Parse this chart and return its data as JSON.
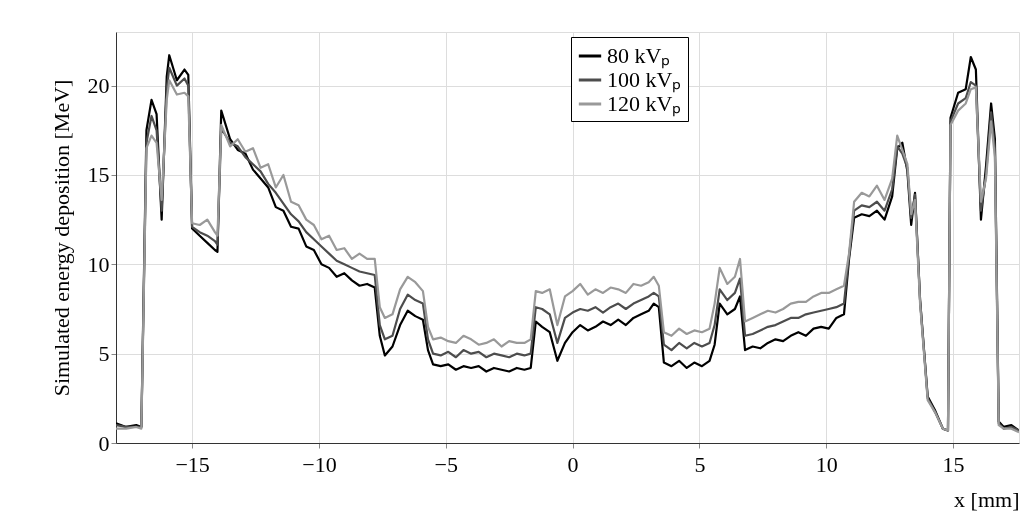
{
  "chart_data": {
    "type": "line",
    "xlabel": "x [mm]",
    "ylabel": "Simulated energy deposition [MeV]",
    "x": [
      -18,
      -17.6,
      -17.2,
      -17.0,
      -16.8,
      -16.6,
      -16.4,
      -16.2,
      -16.0,
      -15.9,
      -15.6,
      -15.3,
      -15.15,
      -15.0,
      -14.7,
      -14.4,
      -14.1,
      -14.0,
      -13.85,
      -13.5,
      -13.2,
      -12.9,
      -12.6,
      -12.3,
      -12.0,
      -11.7,
      -11.4,
      -11.1,
      -10.8,
      -10.5,
      -10.2,
      -9.9,
      -9.6,
      -9.3,
      -9.0,
      -8.7,
      -8.4,
      -8.1,
      -7.8,
      -7.6,
      -7.4,
      -7.1,
      -6.8,
      -6.5,
      -6.2,
      -5.9,
      -5.7,
      -5.5,
      -5.2,
      -4.9,
      -4.6,
      -4.3,
      -4.0,
      -3.7,
      -3.4,
      -3.1,
      -2.8,
      -2.5,
      -2.2,
      -1.9,
      -1.65,
      -1.45,
      -1.2,
      -0.9,
      -0.6,
      -0.3,
      0,
      0.3,
      0.6,
      0.9,
      1.2,
      1.5,
      1.8,
      2.1,
      2.4,
      2.7,
      3.0,
      3.2,
      3.4,
      3.6,
      3.9,
      4.2,
      4.5,
      4.8,
      5.1,
      5.4,
      5.6,
      5.8,
      6.1,
      6.4,
      6.6,
      6.8,
      7.1,
      7.4,
      7.7,
      8.0,
      8.3,
      8.6,
      8.9,
      9.2,
      9.5,
      9.8,
      10.1,
      10.4,
      10.7,
      10.9,
      11.1,
      11.4,
      11.7,
      12.0,
      12.3,
      12.6,
      12.8,
      13.0,
      13.2,
      13.35,
      13.5,
      13.7,
      14.0,
      14.3,
      14.6,
      14.8,
      14.9,
      15.2,
      15.5,
      15.7,
      15.9,
      16.1,
      16.3,
      16.5,
      16.65,
      16.8,
      17.0,
      17.3,
      17.6
    ],
    "series": [
      {
        "name": "80 kVₚ",
        "color": "#000000",
        "values": [
          1.1,
          0.9,
          1.0,
          0.9,
          17.5,
          19.2,
          18.4,
          12.5,
          20.5,
          21.7,
          20.3,
          20.9,
          20.6,
          12.0,
          11.6,
          11.2,
          10.8,
          10.7,
          18.6,
          17.0,
          16.4,
          16.2,
          15.3,
          14.8,
          14.3,
          13.2,
          13.0,
          12.1,
          12.0,
          11.0,
          10.8,
          10.0,
          9.8,
          9.3,
          9.5,
          9.1,
          8.8,
          8.9,
          8.7,
          6.0,
          4.9,
          5.4,
          6.6,
          7.4,
          7.1,
          6.9,
          5.2,
          4.4,
          4.3,
          4.4,
          4.1,
          4.3,
          4.2,
          4.3,
          4.0,
          4.2,
          4.1,
          4.0,
          4.2,
          4.1,
          4.2,
          6.8,
          6.5,
          6.2,
          4.6,
          5.6,
          6.2,
          6.6,
          6.3,
          6.5,
          6.8,
          6.6,
          6.9,
          6.6,
          7.0,
          7.2,
          7.4,
          7.8,
          7.6,
          4.5,
          4.3,
          4.6,
          4.2,
          4.5,
          4.3,
          4.6,
          5.5,
          7.8,
          7.2,
          7.5,
          8.2,
          5.2,
          5.4,
          5.3,
          5.6,
          5.8,
          5.7,
          6.0,
          6.2,
          6.0,
          6.4,
          6.5,
          6.4,
          7.0,
          7.2,
          10.3,
          12.6,
          12.8,
          12.7,
          13.0,
          12.5,
          13.8,
          16.5,
          16.8,
          15.2,
          12.2,
          14.0,
          8.0,
          2.6,
          1.8,
          0.8,
          0.7,
          18.2,
          19.6,
          19.8,
          21.6,
          20.9,
          12.5,
          15.5,
          19.0,
          17.0,
          1.2,
          0.9,
          1.0,
          0.7
        ]
      },
      {
        "name": "100 kVₚ",
        "color": "#4d4d4d",
        "values": [
          1.0,
          0.9,
          0.9,
          0.9,
          16.8,
          18.3,
          17.5,
          13.0,
          19.8,
          21.0,
          20.0,
          20.4,
          20.0,
          12.1,
          11.8,
          11.6,
          11.3,
          11.1,
          17.6,
          16.8,
          16.6,
          16.0,
          15.6,
          15.2,
          14.5,
          14.0,
          13.4,
          12.8,
          12.4,
          11.8,
          11.4,
          11.0,
          10.6,
          10.2,
          10.0,
          9.8,
          9.6,
          9.5,
          9.4,
          6.6,
          5.8,
          6.0,
          7.5,
          8.3,
          8.0,
          7.8,
          5.8,
          5.0,
          4.9,
          5.1,
          4.8,
          5.2,
          5.0,
          5.1,
          4.8,
          5.0,
          4.9,
          4.8,
          5.0,
          4.9,
          5.0,
          7.6,
          7.5,
          7.2,
          5.6,
          7.0,
          7.3,
          7.5,
          7.4,
          7.6,
          7.3,
          7.6,
          7.8,
          7.5,
          7.8,
          8.0,
          8.2,
          8.4,
          8.2,
          5.5,
          5.2,
          5.6,
          5.3,
          5.6,
          5.4,
          5.6,
          6.6,
          8.6,
          8.0,
          8.4,
          9.2,
          6.0,
          6.1,
          6.3,
          6.5,
          6.6,
          6.8,
          7.0,
          7.0,
          7.2,
          7.3,
          7.4,
          7.5,
          7.6,
          7.8,
          10.5,
          13.0,
          13.3,
          13.2,
          13.5,
          13.0,
          14.2,
          16.6,
          16.2,
          15.4,
          12.6,
          13.9,
          8.0,
          2.5,
          1.7,
          0.8,
          0.7,
          18.0,
          19.0,
          19.3,
          20.2,
          20.0,
          13.0,
          15.0,
          18.5,
          16.5,
          1.1,
          0.8,
          0.9,
          0.7
        ]
      },
      {
        "name": "120 kVₚ",
        "color": "#999999",
        "values": [
          0.8,
          0.8,
          0.9,
          0.8,
          16.5,
          17.2,
          16.8,
          13.6,
          19.2,
          20.3,
          19.5,
          19.6,
          19.4,
          12.3,
          12.2,
          12.5,
          11.8,
          11.6,
          17.8,
          16.6,
          17.0,
          16.3,
          16.5,
          15.4,
          15.6,
          14.3,
          15.0,
          13.5,
          13.3,
          12.5,
          12.2,
          11.4,
          11.6,
          10.8,
          10.9,
          10.3,
          10.6,
          10.3,
          10.3,
          7.6,
          7.0,
          7.2,
          8.6,
          9.3,
          9.0,
          8.5,
          6.5,
          5.8,
          5.9,
          5.7,
          5.6,
          6.0,
          5.8,
          5.5,
          5.6,
          5.8,
          5.4,
          5.7,
          5.6,
          5.6,
          5.8,
          8.5,
          8.4,
          8.6,
          6.6,
          8.2,
          8.5,
          8.9,
          8.3,
          8.6,
          8.4,
          8.7,
          8.6,
          8.4,
          8.9,
          8.8,
          9.0,
          9.3,
          8.8,
          6.2,
          6.0,
          6.4,
          6.1,
          6.3,
          6.2,
          6.4,
          7.8,
          9.8,
          8.9,
          9.3,
          10.3,
          6.8,
          7.0,
          7.2,
          7.4,
          7.3,
          7.5,
          7.8,
          7.9,
          7.9,
          8.2,
          8.4,
          8.4,
          8.6,
          8.8,
          10.6,
          13.5,
          14.0,
          13.8,
          14.4,
          13.6,
          14.8,
          17.2,
          16.4,
          15.6,
          12.8,
          13.6,
          7.8,
          2.4,
          1.7,
          0.8,
          0.7,
          17.8,
          18.6,
          19.0,
          19.8,
          19.9,
          13.5,
          14.8,
          18.0,
          16.0,
          1.0,
          0.8,
          0.8,
          0.6
        ]
      }
    ],
    "xlim": [
      -18,
      17.6
    ],
    "xticks": [
      -15,
      -10,
      -5,
      0,
      5,
      10,
      15
    ],
    "ylim": [
      0,
      23
    ],
    "yticks": [
      0,
      5,
      10,
      15,
      20
    ],
    "grid": true,
    "legend": "top",
    "marker": "none",
    "line_style": "solid"
  }
}
